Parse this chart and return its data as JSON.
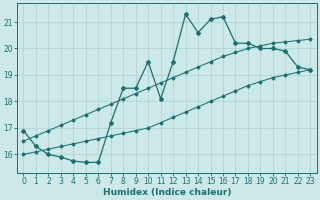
{
  "xlabel": "Humidex (Indice chaleur)",
  "xlim": [
    -0.5,
    23.5
  ],
  "ylim": [
    15.3,
    21.7
  ],
  "yticks": [
    16,
    17,
    18,
    19,
    20,
    21
  ],
  "xticks": [
    0,
    1,
    2,
    3,
    4,
    5,
    6,
    7,
    8,
    9,
    10,
    11,
    12,
    13,
    14,
    15,
    16,
    17,
    18,
    19,
    20,
    21,
    22,
    23
  ],
  "bg_color": "#cce8e8",
  "grid_color": "#b0d4d4",
  "line_color": "#1a7070",
  "hours": [
    0,
    1,
    2,
    3,
    4,
    5,
    6,
    7,
    8,
    9,
    10,
    11,
    12,
    13,
    14,
    15,
    16,
    17,
    18,
    19,
    20,
    21,
    22,
    23
  ],
  "line_main": [
    16.9,
    16.3,
    16.0,
    15.9,
    15.75,
    15.7,
    15.7,
    17.2,
    18.5,
    18.5,
    19.5,
    18.1,
    19.5,
    21.3,
    20.6,
    21.1,
    21.2,
    20.2,
    20.2,
    20.0,
    20.0,
    19.9,
    19.3,
    19.2
  ],
  "line_upper": [
    16.5,
    16.7,
    16.9,
    17.1,
    17.3,
    17.5,
    17.7,
    17.9,
    18.1,
    18.3,
    18.5,
    18.7,
    18.9,
    19.1,
    19.3,
    19.5,
    19.7,
    19.85,
    20.0,
    20.1,
    20.2,
    20.25,
    20.3,
    20.35
  ],
  "line_lower": [
    16.0,
    16.1,
    16.2,
    16.3,
    16.4,
    16.5,
    16.6,
    16.7,
    16.8,
    16.9,
    17.0,
    17.2,
    17.4,
    17.6,
    17.8,
    18.0,
    18.2,
    18.4,
    18.6,
    18.75,
    18.9,
    19.0,
    19.1,
    19.2
  ]
}
